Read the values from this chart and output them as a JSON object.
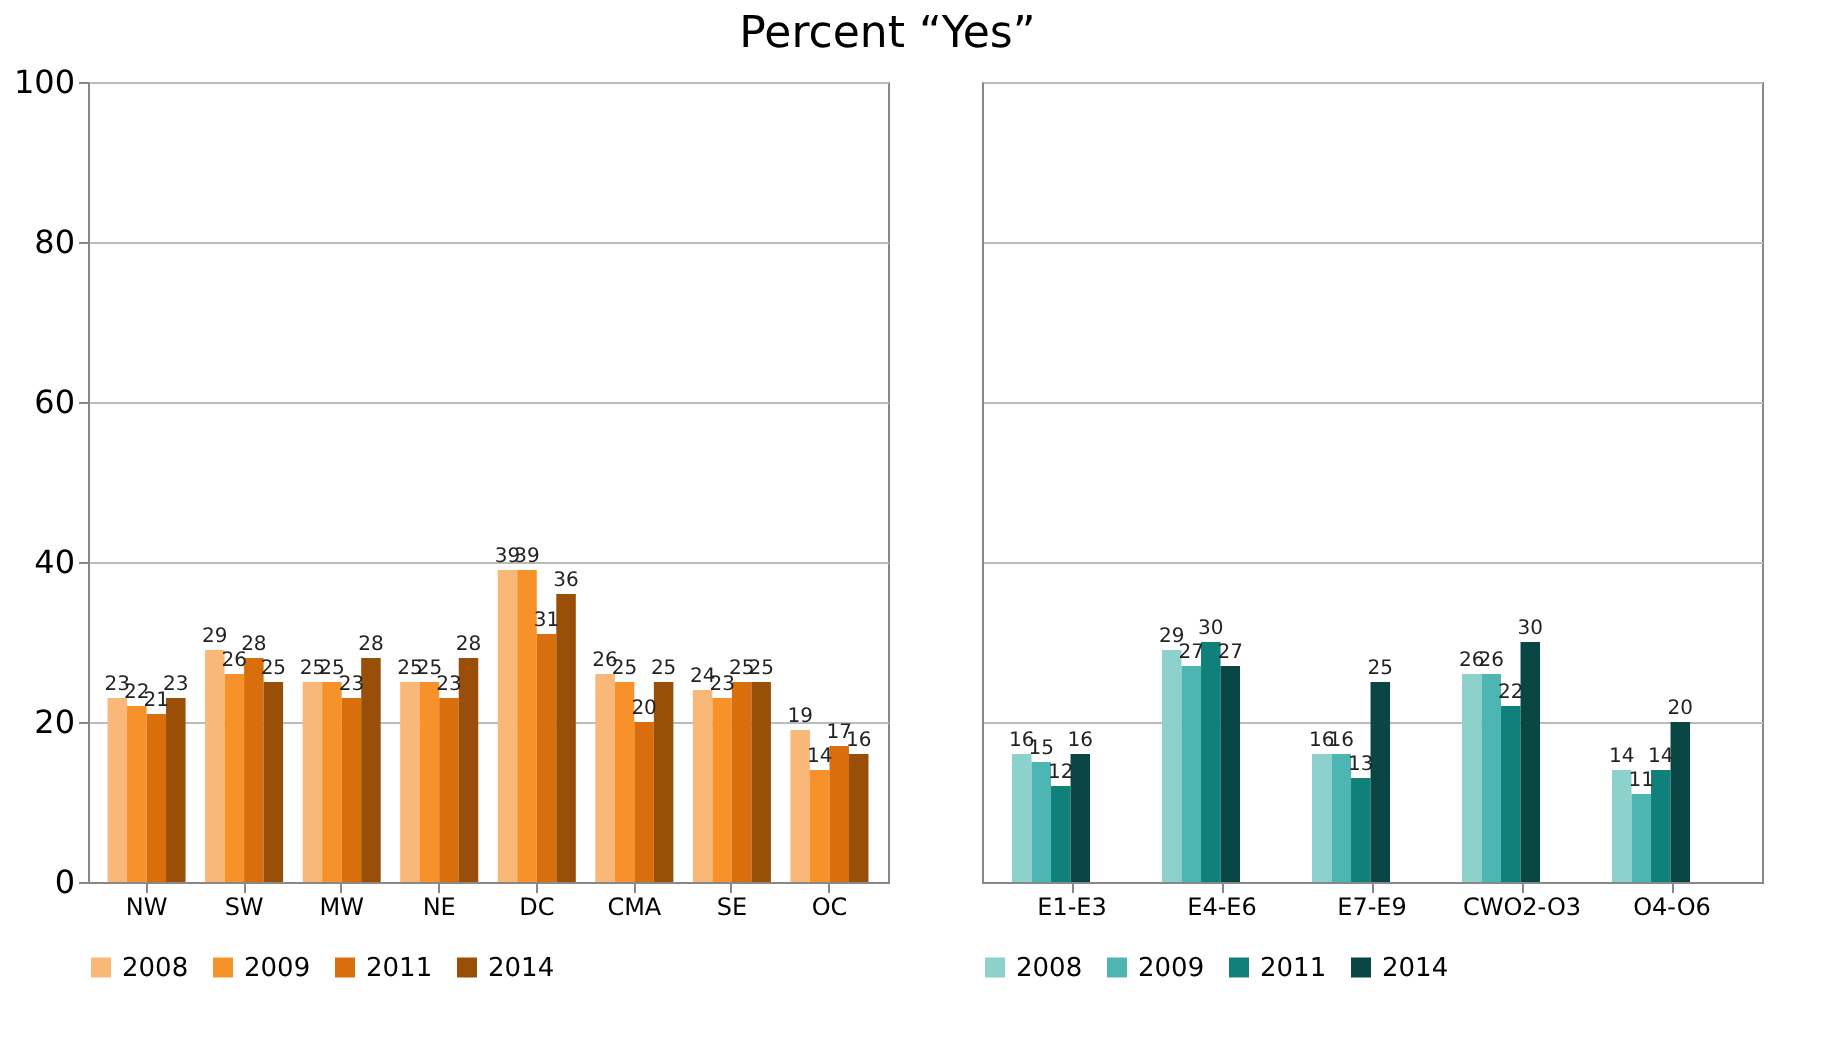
{
  "chart_data": [
    {
      "type": "bar",
      "title": "Percent “Yes”",
      "categories": [
        "NW",
        "SW",
        "MW",
        "NE",
        "DC",
        "CMA",
        "SE",
        "OC"
      ],
      "series": [
        {
          "name": "2008",
          "color": "#f9b877",
          "values": [
            23,
            29,
            25,
            25,
            39,
            26,
            24,
            19
          ]
        },
        {
          "name": "2009",
          "color": "#f7922a",
          "values": [
            22,
            26,
            25,
            25,
            39,
            25,
            23,
            14
          ]
        },
        {
          "name": "2011",
          "color": "#d86f0c",
          "values": [
            21,
            28,
            23,
            23,
            31,
            20,
            25,
            17
          ]
        },
        {
          "name": "2014",
          "color": "#9a4f08",
          "values": [
            23,
            25,
            28,
            28,
            36,
            25,
            25,
            16
          ]
        }
      ],
      "ylim": [
        0,
        100
      ],
      "yticks": [
        0,
        20,
        40,
        60,
        80,
        100
      ],
      "grid": "y",
      "legend": "bottom",
      "data_labels": true
    },
    {
      "type": "bar",
      "categories": [
        "E1-E3",
        "E4-E6",
        "E7-E9",
        "CWO2-O3",
        "O4-O6"
      ],
      "series": [
        {
          "name": "2008",
          "color": "#8dd1cd",
          "values": [
            16,
            29,
            16,
            26,
            14
          ]
        },
        {
          "name": "2009",
          "color": "#4db6b2",
          "values": [
            15,
            27,
            16,
            26,
            11
          ]
        },
        {
          "name": "2011",
          "color": "#10807b",
          "values": [
            12,
            30,
            13,
            22,
            14
          ]
        },
        {
          "name": "2014",
          "color": "#0a4744",
          "values": [
            16,
            27,
            25,
            30,
            20
          ]
        }
      ],
      "ylim": [
        0,
        100
      ],
      "yticks": [
        0,
        20,
        40,
        60,
        80,
        100
      ],
      "grid": "y",
      "legend": "bottom",
      "data_labels": true,
      "tick_labels": "x"
    }
  ]
}
